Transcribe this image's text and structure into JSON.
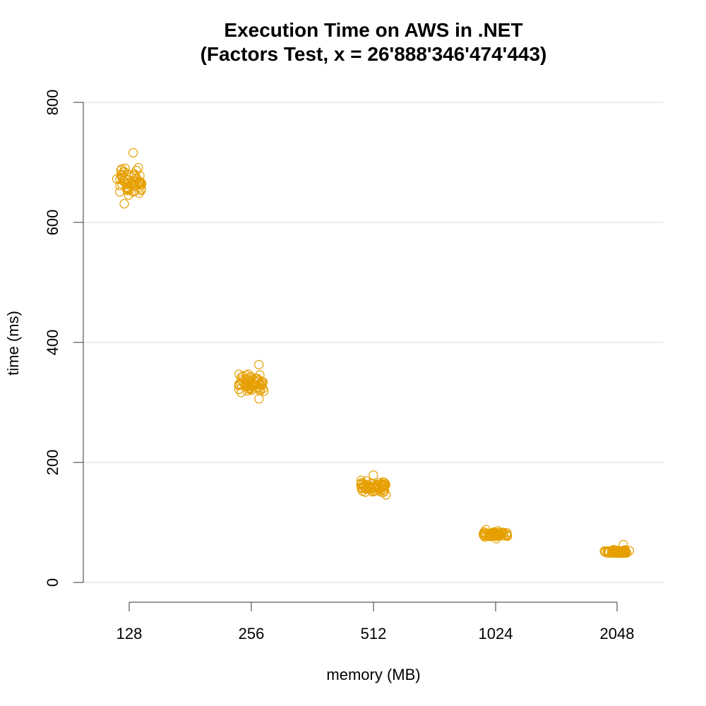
{
  "chart_data": {
    "type": "scatter",
    "title": "Execution Time on AWS in .NET",
    "subtitle": "(Factors Test, x = 26'888'346'474'443)",
    "xlabel": "memory (MB)",
    "ylabel": "time (ms)",
    "categories": [
      "128",
      "256",
      "512",
      "1024",
      "2048"
    ],
    "yticks": [
      "0",
      "200",
      "400",
      "600",
      "800"
    ],
    "ylim": [
      0,
      800
    ],
    "grid": "horizontal",
    "point_color": "#E69F00",
    "marker": "open-circle",
    "groups": [
      {
        "category": "128",
        "center": 668,
        "min": 631,
        "max": 716,
        "n": 60
      },
      {
        "category": "256",
        "center": 332,
        "min": 306,
        "max": 363,
        "n": 60
      },
      {
        "category": "512",
        "center": 160,
        "min": 146,
        "max": 179,
        "n": 60
      },
      {
        "category": "1024",
        "center": 80,
        "min": 73,
        "max": 88,
        "n": 60
      },
      {
        "category": "2048",
        "center": 51,
        "min": 49,
        "max": 63,
        "n": 60
      }
    ]
  }
}
